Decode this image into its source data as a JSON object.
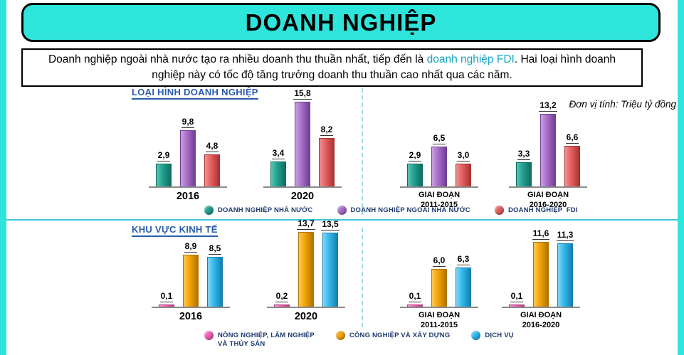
{
  "page": {
    "title": "DOANH NGHIỆP",
    "intro": {
      "part1": "Doanh nghiệp ngoài nhà nước tạo ra nhiều doanh thu thuần nhất, tiếp đến là ",
      "highlight": "doanh nghiệp FDI",
      "part2": ". Hai loại hình doanh nghiệp này có tốc độ tăng trưởng doanh thu thuần cao nhất qua các năm."
    },
    "unit_note": "Đơn vị tính: Triệu tỷ đồng"
  },
  "colors": {
    "banner": "#2ee5dc",
    "section_title": "#2a5caa",
    "highlight_text": "#17a3c4",
    "divider": "#3fc3d8"
  },
  "chart_data": [
    {
      "type": "bar",
      "title": "LOẠI HÌNH DOANH NGHIỆP",
      "unit": "Triệu tỷ đồng",
      "categories": [
        "2016",
        "2020",
        "GIAI ĐOẠN\n2011-2015",
        "GIAI ĐOẠN\n2016-2020"
      ],
      "series": [
        {
          "name": "DOANH NGHIỆP NHÀ NƯỚC",
          "color": "#1f9e8e",
          "color_light": "#5cc4b2",
          "color_dark": "#0f6e60",
          "values": [
            2.9,
            3.4,
            2.9,
            3.3
          ]
        },
        {
          "name": "DOANH NGHIỆP NGOÀI NHÀ NƯỚC",
          "color": "#a66cc8",
          "color_light": "#c9a0e0",
          "color_dark": "#713f94",
          "values": [
            9.8,
            15.8,
            6.5,
            13.2
          ]
        },
        {
          "name": "DOANH NGHIỆP  FDI",
          "color": "#e25c5c",
          "color_light": "#f19090",
          "color_dark": "#a83333",
          "values": [
            4.8,
            8.2,
            3.0,
            6.6
          ]
        }
      ]
    },
    {
      "type": "bar",
      "title": "KHU VỰC KINH TẾ",
      "unit": "Triệu tỷ đồng",
      "categories": [
        "2016",
        "2020",
        "GIAI ĐOẠN\n2011-2015",
        "GIAI ĐOẠN\n2016-2020"
      ],
      "series": [
        {
          "name": "NÔNG NGHIỆP, LÂM NGHIỆP\nVÀ THỦY SẢN",
          "color": "#ee5fb2",
          "color_light": "#f79ad2",
          "color_dark": "#b8367f",
          "values": [
            0.1,
            0.2,
            0.1,
            0.1
          ]
        },
        {
          "name": "CÔNG NGHIỆP VÀ XÂY DỰNG",
          "color": "#f0a202",
          "color_light": "#ffc755",
          "color_dark": "#b07400",
          "values": [
            8.9,
            13.7,
            6.0,
            11.6
          ]
        },
        {
          "name": "DỊCH VỤ",
          "color": "#2eb5e9",
          "color_light": "#82d7f6",
          "color_dark": "#177fae",
          "values": [
            8.5,
            13.5,
            6.3,
            11.3
          ]
        }
      ]
    }
  ]
}
